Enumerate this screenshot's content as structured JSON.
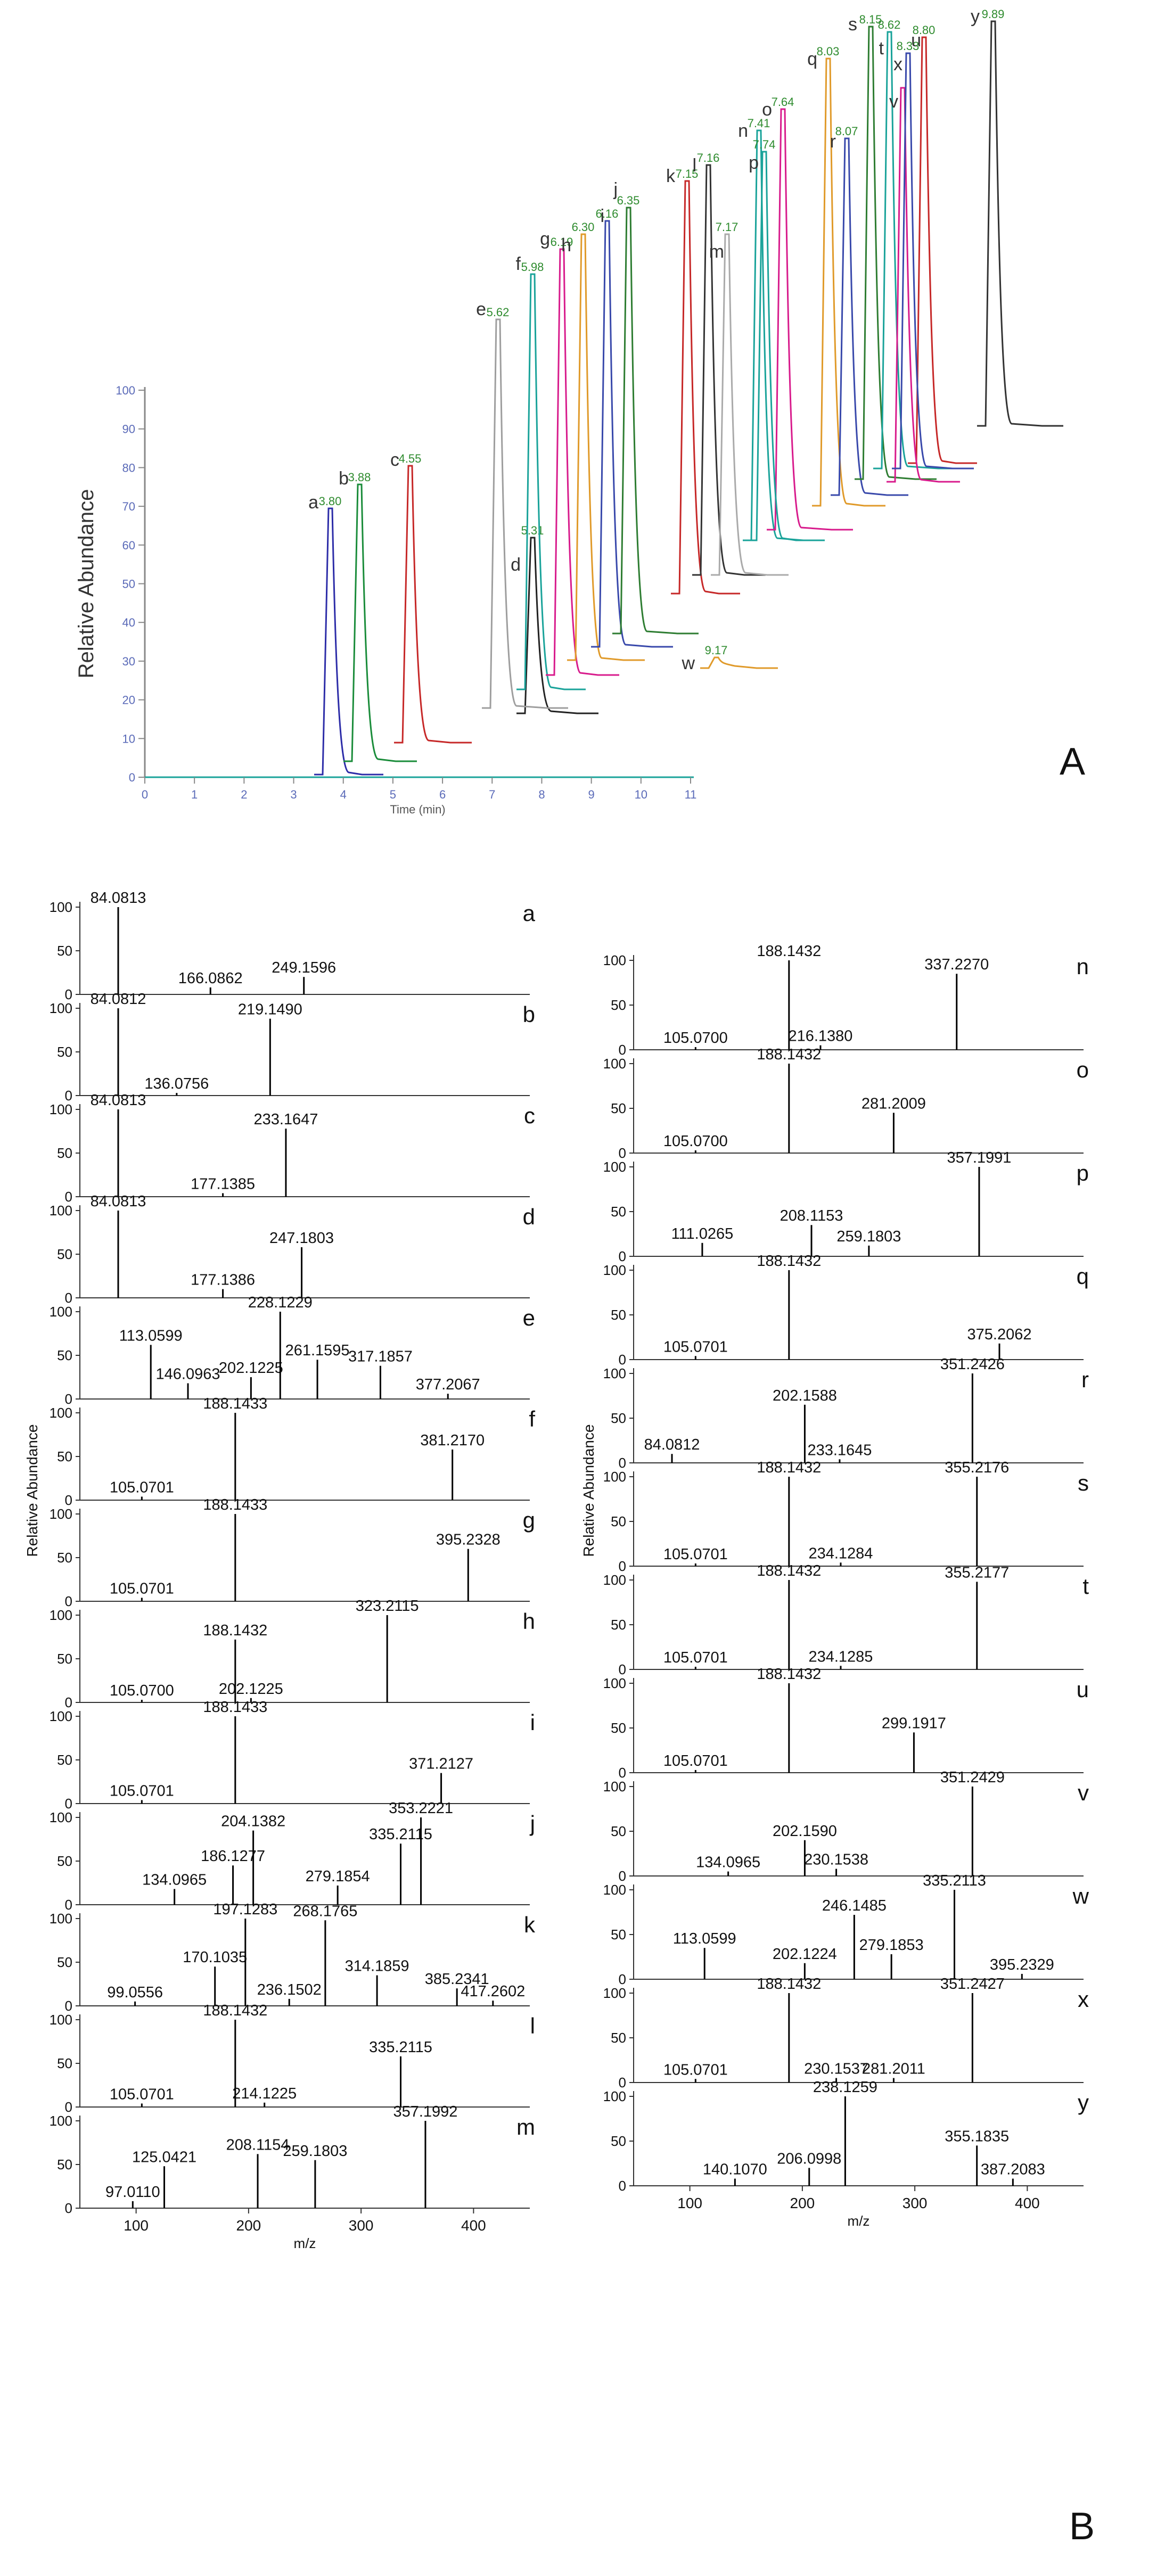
{
  "panel_labels": {
    "A": "A",
    "B": "B"
  },
  "colors": {
    "axis": "#888888",
    "peak_label": "#2e8b2e",
    "letter": "#333333",
    "spectrum": "#000000",
    "palette": [
      "#2d2da8",
      "#1a8c3a",
      "#c62828",
      "#222222",
      "#9e9e9e",
      "#1aa39a",
      "#d81b8c",
      "#e09a2a",
      "#3949ab",
      "#2e7d32",
      "#c62828",
      "#333333",
      "#aaaaaa",
      "#1aa39a",
      "#d81b8c",
      "#1aa39a",
      "#e09a2a",
      "#3949ab",
      "#2e7d32",
      "#1aa39a",
      "#c62828",
      "#d81b8c",
      "#e09a2a",
      "#3949ab",
      "#333333"
    ]
  },
  "chart_data": [
    {
      "type": "line",
      "panel": "A",
      "ylabel": "Relative Abundance",
      "xlabel": "Time (min)",
      "x_ticks": [
        "0",
        "1",
        "2",
        "3",
        "4",
        "5",
        "6",
        "7",
        "8",
        "9",
        "10",
        "11"
      ],
      "y_ticks": [
        "0",
        "10",
        "20",
        "30",
        "40",
        "50",
        "60",
        "70",
        "80",
        "90",
        "100"
      ],
      "xlim": [
        0,
        11
      ],
      "ylim": [
        0,
        100
      ],
      "peaks": [
        {
          "letter": "a",
          "rt": "3.80"
        },
        {
          "letter": "b",
          "rt": "3.88"
        },
        {
          "letter": "c",
          "rt": "4.55"
        },
        {
          "letter": "d",
          "rt": "5.31"
        },
        {
          "letter": "e",
          "rt": "5.62"
        },
        {
          "letter": "f",
          "rt": "5.98"
        },
        {
          "letter": "g",
          "rt": "6.19"
        },
        {
          "letter": "h",
          "rt": "6.30"
        },
        {
          "letter": "i",
          "rt": "6.16"
        },
        {
          "letter": "j",
          "rt": "6.35"
        },
        {
          "letter": "k",
          "rt": "7.15"
        },
        {
          "letter": "l",
          "rt": "7.16"
        },
        {
          "letter": "m",
          "rt": "7.17"
        },
        {
          "letter": "n",
          "rt": "7.41"
        },
        {
          "letter": "o",
          "rt": "7.64"
        },
        {
          "letter": "p",
          "rt": "7.74"
        },
        {
          "letter": "q",
          "rt": "8.03"
        },
        {
          "letter": "r",
          "rt": "8.07"
        },
        {
          "letter": "s",
          "rt": "8.15"
        },
        {
          "letter": "t",
          "rt": "8.62"
        },
        {
          "letter": "u",
          "rt": "8.80"
        },
        {
          "letter": "v",
          "rt": ""
        },
        {
          "letter": "w",
          "rt": "9.17"
        },
        {
          "letter": "x",
          "rt": "8.33"
        },
        {
          "letter": "y",
          "rt": "9.89"
        }
      ]
    },
    {
      "type": "bar",
      "panel": "B",
      "subtype": "mass-spectra",
      "ylabel": "Relative Abundance",
      "xlabel": "m/z",
      "xlim": [
        50,
        450
      ],
      "x_ticks": [
        "100",
        "200",
        "300",
        "400"
      ],
      "y_ticks": [
        "0",
        "50",
        "100"
      ],
      "spectra": [
        {
          "label": "a",
          "peaks": [
            {
              "mz": 84.0813,
              "i": 100,
              "text": "84.0813"
            },
            {
              "mz": 166.0862,
              "i": 8,
              "text": "166.0862"
            },
            {
              "mz": 249.1596,
              "i": 20,
              "text": "249.1596"
            }
          ]
        },
        {
          "label": "b",
          "peaks": [
            {
              "mz": 84.0812,
              "i": 100,
              "text": "84.0812"
            },
            {
              "mz": 136.0756,
              "i": 3,
              "text": "136.0756"
            },
            {
              "mz": 219.149,
              "i": 88,
              "text": "219.1490"
            }
          ]
        },
        {
          "label": "c",
          "peaks": [
            {
              "mz": 84.0813,
              "i": 100,
              "text": "84.0813"
            },
            {
              "mz": 177.1385,
              "i": 4,
              "text": "177.1385"
            },
            {
              "mz": 233.1647,
              "i": 78,
              "text": "233.1647"
            }
          ]
        },
        {
          "label": "d",
          "peaks": [
            {
              "mz": 84.0813,
              "i": 100,
              "text": "84.0813"
            },
            {
              "mz": 177.1386,
              "i": 10,
              "text": "177.1386"
            },
            {
              "mz": 247.1803,
              "i": 58,
              "text": "247.1803"
            }
          ]
        },
        {
          "label": "e",
          "peaks": [
            {
              "mz": 113.0599,
              "i": 62,
              "text": "113.0599"
            },
            {
              "mz": 146.0963,
              "i": 18,
              "text": "146.0963"
            },
            {
              "mz": 202.1225,
              "i": 25,
              "text": "202.1225"
            },
            {
              "mz": 228.1229,
              "i": 100,
              "text": "228.1229"
            },
            {
              "mz": 261.1595,
              "i": 45,
              "text": "261.1595"
            },
            {
              "mz": 317.1857,
              "i": 38,
              "text": "317.1857"
            },
            {
              "mz": 377.2067,
              "i": 6,
              "text": "377.2067"
            }
          ]
        },
        {
          "label": "f",
          "peaks": [
            {
              "mz": 105.0701,
              "i": 4,
              "text": "105.0701"
            },
            {
              "mz": 188.1433,
              "i": 100,
              "text": "188.1433"
            },
            {
              "mz": 381.217,
              "i": 58,
              "text": "381.2170"
            }
          ]
        },
        {
          "label": "g",
          "peaks": [
            {
              "mz": 105.0701,
              "i": 4,
              "text": "105.0701"
            },
            {
              "mz": 188.1433,
              "i": 100,
              "text": "188.1433"
            },
            {
              "mz": 395.2328,
              "i": 60,
              "text": "395.2328"
            }
          ]
        },
        {
          "label": "h",
          "peaks": [
            {
              "mz": 105.07,
              "i": 3,
              "text": "105.0700"
            },
            {
              "mz": 188.1432,
              "i": 72,
              "text": "188.1432"
            },
            {
              "mz": 202.1225,
              "i": 5,
              "text": "202.1225"
            },
            {
              "mz": 323.2115,
              "i": 100,
              "text": "323.2115"
            }
          ]
        },
        {
          "label": "i",
          "peaks": [
            {
              "mz": 105.0701,
              "i": 4,
              "text": "105.0701"
            },
            {
              "mz": 188.1433,
              "i": 100,
              "text": "188.1433"
            },
            {
              "mz": 371.2127,
              "i": 35,
              "text": "371.2127"
            }
          ]
        },
        {
          "label": "j",
          "peaks": [
            {
              "mz": 134.0965,
              "i": 18,
              "text": "134.0965"
            },
            {
              "mz": 186.1277,
              "i": 45,
              "text": "186.1277"
            },
            {
              "mz": 204.1382,
              "i": 85,
              "text": "204.1382"
            },
            {
              "mz": 279.1854,
              "i": 22,
              "text": "279.1854"
            },
            {
              "mz": 335.2115,
              "i": 70,
              "text": "335.2115"
            },
            {
              "mz": 353.2221,
              "i": 100,
              "text": "353.2221"
            }
          ]
        },
        {
          "label": "k",
          "peaks": [
            {
              "mz": 99.0556,
              "i": 5,
              "text": "99.0556"
            },
            {
              "mz": 170.1035,
              "i": 45,
              "text": "170.1035"
            },
            {
              "mz": 197.1283,
              "i": 100,
              "text": "197.1283"
            },
            {
              "mz": 236.1502,
              "i": 8,
              "text": "236.1502"
            },
            {
              "mz": 268.1765,
              "i": 98,
              "text": "268.1765"
            },
            {
              "mz": 314.1859,
              "i": 35,
              "text": "314.1859"
            },
            {
              "mz": 385.2341,
              "i": 20,
              "text": "385.2341"
            },
            {
              "mz": 417.2602,
              "i": 6,
              "text": "417.2602"
            }
          ]
        },
        {
          "label": "l",
          "peaks": [
            {
              "mz": 105.0701,
              "i": 4,
              "text": "105.0701"
            },
            {
              "mz": 188.1432,
              "i": 100,
              "text": "188.1432"
            },
            {
              "mz": 214.1225,
              "i": 5,
              "text": "214.1225"
            },
            {
              "mz": 335.2115,
              "i": 58,
              "text": "335.2115"
            }
          ]
        },
        {
          "label": "m",
          "peaks": [
            {
              "mz": 97.011,
              "i": 8,
              "text": "97.0110"
            },
            {
              "mz": 125.0421,
              "i": 48,
              "text": "125.0421"
            },
            {
              "mz": 208.1154,
              "i": 62,
              "text": "208.1154"
            },
            {
              "mz": 259.1803,
              "i": 55,
              "text": "259.1803"
            },
            {
              "mz": 357.1992,
              "i": 100,
              "text": "357.1992"
            }
          ]
        },
        {
          "label": "n",
          "peaks": [
            {
              "mz": 105.07,
              "i": 3,
              "text": "105.0700"
            },
            {
              "mz": 188.1432,
              "i": 100,
              "text": "188.1432"
            },
            {
              "mz": 216.138,
              "i": 5,
              "text": "216.1380"
            },
            {
              "mz": 337.227,
              "i": 85,
              "text": "337.2270"
            }
          ]
        },
        {
          "label": "o",
          "peaks": [
            {
              "mz": 105.07,
              "i": 3,
              "text": "105.0700"
            },
            {
              "mz": 188.1432,
              "i": 100,
              "text": "188.1432"
            },
            {
              "mz": 281.2009,
              "i": 45,
              "text": "281.2009"
            }
          ]
        },
        {
          "label": "p",
          "peaks": [
            {
              "mz": 111.0265,
              "i": 15,
              "text": "111.0265"
            },
            {
              "mz": 208.1153,
              "i": 35,
              "text": "208.1153"
            },
            {
              "mz": 259.1803,
              "i": 12,
              "text": "259.1803"
            },
            {
              "mz": 357.1991,
              "i": 100,
              "text": "357.1991"
            }
          ]
        },
        {
          "label": "q",
          "peaks": [
            {
              "mz": 105.0701,
              "i": 4,
              "text": "105.0701"
            },
            {
              "mz": 188.1432,
              "i": 100,
              "text": "188.1432"
            },
            {
              "mz": 375.2062,
              "i": 18,
              "text": "375.2062"
            }
          ]
        },
        {
          "label": "r",
          "peaks": [
            {
              "mz": 84.0812,
              "i": 10,
              "text": "84.0812"
            },
            {
              "mz": 202.1588,
              "i": 65,
              "text": "202.1588"
            },
            {
              "mz": 233.1645,
              "i": 4,
              "text": "233.1645"
            },
            {
              "mz": 351.2426,
              "i": 100,
              "text": "351.2426"
            }
          ]
        },
        {
          "label": "s",
          "peaks": [
            {
              "mz": 105.0701,
              "i": 3,
              "text": "105.0701"
            },
            {
              "mz": 188.1432,
              "i": 100,
              "text": "188.1432"
            },
            {
              "mz": 234.1284,
              "i": 4,
              "text": "234.1284"
            },
            {
              "mz": 355.2176,
              "i": 100,
              "text": "355.2176"
            }
          ]
        },
        {
          "label": "t",
          "peaks": [
            {
              "mz": 105.0701,
              "i": 3,
              "text": "105.0701"
            },
            {
              "mz": 188.1432,
              "i": 100,
              "text": "188.1432"
            },
            {
              "mz": 234.1285,
              "i": 4,
              "text": "234.1285"
            },
            {
              "mz": 355.2177,
              "i": 98,
              "text": "355.2177"
            }
          ]
        },
        {
          "label": "u",
          "peaks": [
            {
              "mz": 105.0701,
              "i": 3,
              "text": "105.0701"
            },
            {
              "mz": 188.1432,
              "i": 100,
              "text": "188.1432"
            },
            {
              "mz": 299.1917,
              "i": 45,
              "text": "299.1917"
            }
          ]
        },
        {
          "label": "v",
          "peaks": [
            {
              "mz": 134.0965,
              "i": 5,
              "text": "134.0965"
            },
            {
              "mz": 202.159,
              "i": 40,
              "text": "202.1590"
            },
            {
              "mz": 230.1538,
              "i": 8,
              "text": "230.1538"
            },
            {
              "mz": 351.2429,
              "i": 100,
              "text": "351.2429"
            }
          ]
        },
        {
          "label": "w",
          "peaks": [
            {
              "mz": 113.0599,
              "i": 35,
              "text": "113.0599"
            },
            {
              "mz": 202.1224,
              "i": 18,
              "text": "202.1224"
            },
            {
              "mz": 246.1485,
              "i": 72,
              "text": "246.1485"
            },
            {
              "mz": 279.1853,
              "i": 28,
              "text": "279.1853"
            },
            {
              "mz": 335.2113,
              "i": 100,
              "text": "335.2113"
            },
            {
              "mz": 395.2329,
              "i": 6,
              "text": "395.2329"
            }
          ]
        },
        {
          "label": "x",
          "peaks": [
            {
              "mz": 105.0701,
              "i": 4,
              "text": "105.0701"
            },
            {
              "mz": 188.1432,
              "i": 100,
              "text": "188.1432"
            },
            {
              "mz": 230.1537,
              "i": 5,
              "text": "230.1537"
            },
            {
              "mz": 281.2011,
              "i": 5,
              "text": "281.2011"
            },
            {
              "mz": 351.2427,
              "i": 100,
              "text": "351.2427"
            }
          ]
        },
        {
          "label": "y",
          "peaks": [
            {
              "mz": 140.107,
              "i": 8,
              "text": "140.1070"
            },
            {
              "mz": 206.0998,
              "i": 20,
              "text": "206.0998"
            },
            {
              "mz": 238.1259,
              "i": 100,
              "text": "238.1259"
            },
            {
              "mz": 355.1835,
              "i": 45,
              "text": "355.1835"
            },
            {
              "mz": 387.2083,
              "i": 8,
              "text": "387.2083"
            }
          ]
        }
      ]
    }
  ]
}
